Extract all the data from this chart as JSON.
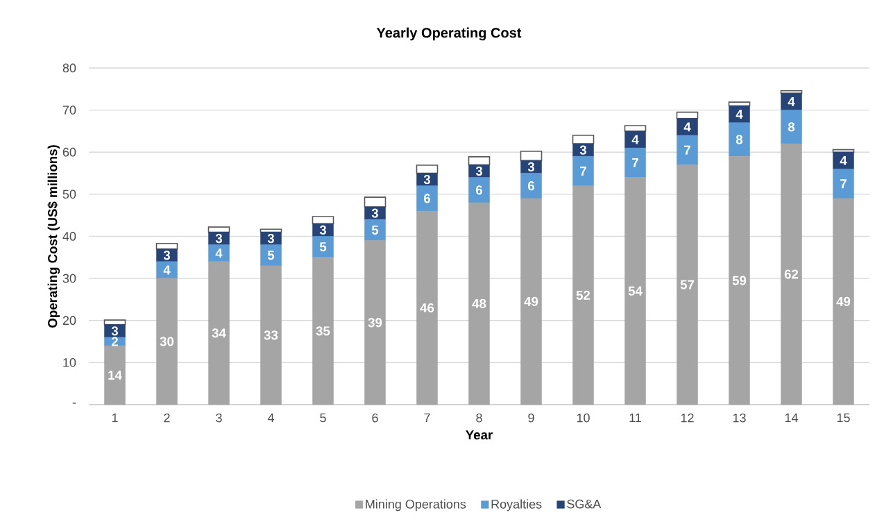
{
  "chart_data": {
    "type": "bar",
    "stacked": true,
    "title": "Yearly Operating Cost",
    "xlabel": "Year",
    "ylabel": "Operating Cost (US$ millions)",
    "categories": [
      "1",
      "2",
      "3",
      "4",
      "5",
      "6",
      "7",
      "8",
      "9",
      "10",
      "11",
      "12",
      "13",
      "14",
      "15"
    ],
    "series": [
      {
        "name": "Mining Operations",
        "color": "#a5a5a5",
        "values": [
          14,
          30,
          34,
          33,
          35,
          39,
          46,
          48,
          49,
          52,
          54,
          57,
          59,
          62,
          49
        ],
        "value_labels": [
          "14",
          "30",
          "34",
          "33",
          "35",
          "39",
          "46",
          "48",
          "49",
          "52",
          "54",
          "57",
          "59",
          "62",
          "49"
        ]
      },
      {
        "name": "Royalties",
        "color": "#5b9bd5",
        "values": [
          2,
          4,
          4,
          5,
          5,
          5,
          6,
          6,
          6,
          7,
          7,
          7,
          8,
          8,
          7
        ],
        "value_labels": [
          "2",
          "4",
          "4",
          "5",
          "5",
          "5",
          "6",
          "6",
          "6",
          "7",
          "7",
          "7",
          "8",
          "8",
          "7"
        ]
      },
      {
        "name": "SG&A",
        "color": "#264478",
        "values": [
          3,
          3,
          3,
          3,
          3,
          3,
          3,
          3,
          3,
          3,
          4,
          4,
          4,
          4,
          4
        ],
        "value_labels": [
          "3",
          "3",
          "3",
          "3",
          "3",
          "3",
          "3",
          "3",
          "3",
          "3",
          "4",
          "4",
          "4",
          "4",
          "4"
        ]
      },
      {
        "color": "#ffffff",
        "values": [
          1.1,
          1.3,
          1.2,
          0.7,
          1.7,
          2.3,
          1.9,
          1.9,
          2.2,
          2.0,
          1.3,
          1.5,
          0.9,
          0.6,
          0.6
        ]
      }
    ],
    "ylim": [
      0,
      80
    ],
    "yticks": [
      {
        "value": 0,
        "label": "-"
      },
      10,
      20,
      30,
      40,
      50,
      60,
      70,
      80
    ],
    "grid": "y",
    "legend": "bottom"
  }
}
